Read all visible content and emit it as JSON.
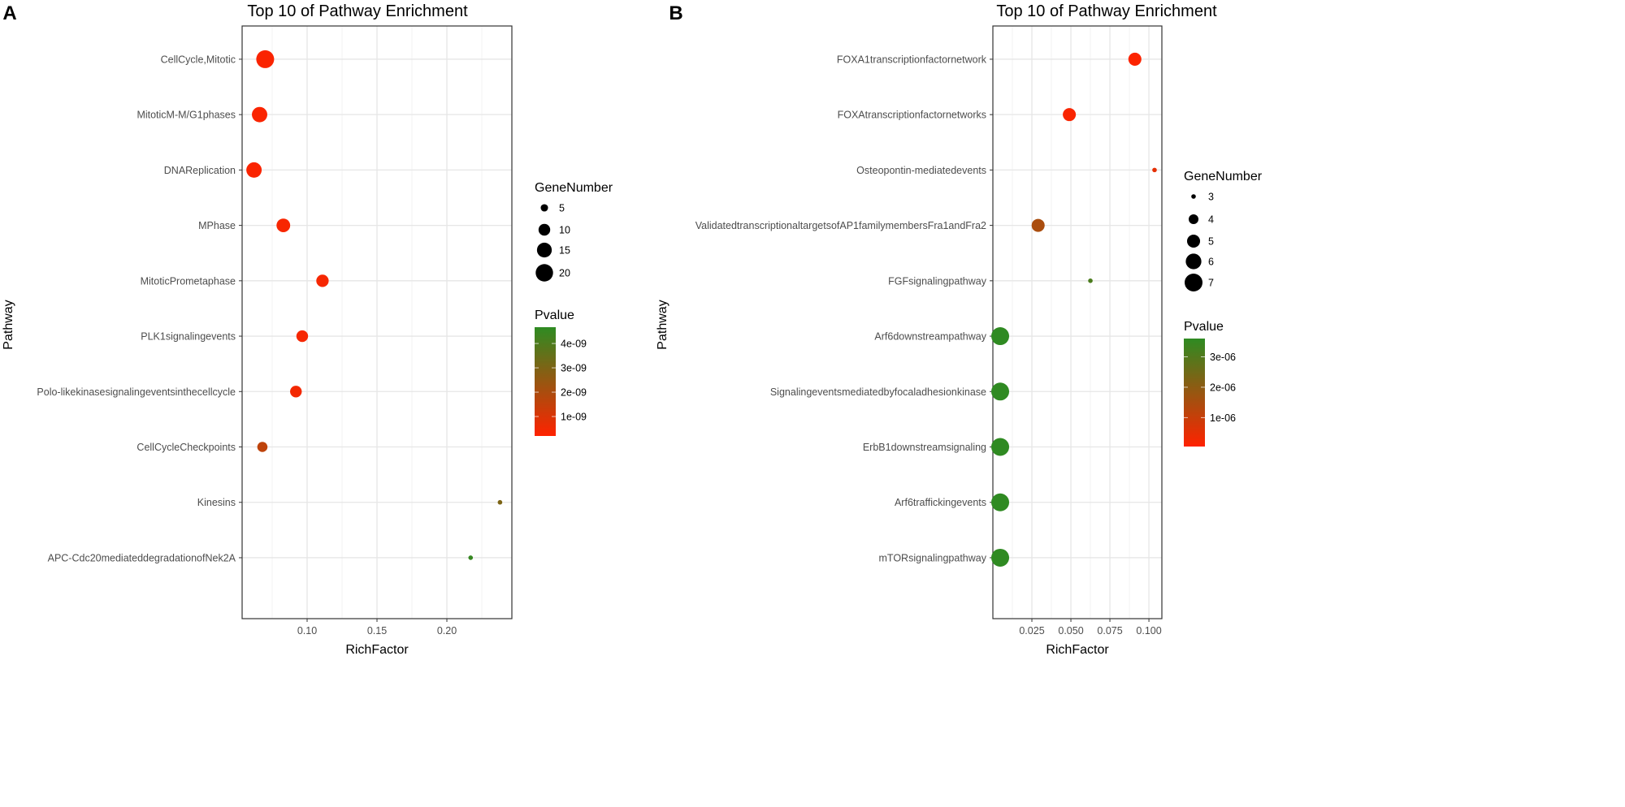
{
  "chart_data": [
    {
      "panel_label": "A",
      "type": "scatter",
      "title": "Top 10 of Pathway Enrichment",
      "xlabel": "RichFactor",
      "ylabel": "Pathway",
      "xlim": [
        0.0535,
        0.2465
      ],
      "xticks": [
        0.1,
        0.15,
        0.2
      ],
      "xtick_labels": [
        "0.10",
        "0.15",
        "0.20"
      ],
      "grid": true,
      "categories": [
        "CellCycle,Mitotic",
        "MitoticM-M/G1phases",
        "DNAReplication",
        "MPhase",
        "MitoticPrometaphase",
        "PLK1signalingevents",
        "Polo-likekinasesignalingeventsinthecellcycle",
        "CellCycleCheckpoints",
        "Kinesins",
        "APC-Cdc20mediateddegradationofNek2A"
      ],
      "rich_factor": [
        0.07,
        0.066,
        0.062,
        0.083,
        0.111,
        0.0965,
        0.092,
        0.068,
        0.238,
        0.217
      ],
      "gene_number": [
        21,
        16,
        16,
        13,
        11,
        10,
        10,
        8,
        3,
        3
      ],
      "pvalue": [
        3e-10,
        3e-10,
        3e-10,
        3.5e-10,
        4e-10,
        4e-10,
        4.5e-10,
        1.6e-09,
        3e-09,
        4.5e-09
      ],
      "size_legend": {
        "title": "GeneNumber",
        "values": [
          5,
          10,
          15,
          20
        ],
        "labels": [
          "5",
          "10",
          "15",
          "20"
        ],
        "range": [
          3,
          21
        ]
      },
      "color_legend": {
        "title": "Pvalue",
        "range": [
          2e-10,
          4.67e-09
        ],
        "ticks": [
          4e-09,
          3e-09,
          2e-09,
          1e-09
        ],
        "labels": [
          "4e-09",
          "3e-09",
          "2e-09",
          "1e-09"
        ]
      },
      "colors": {
        "low": "#ff2200",
        "high": "#2e8b22"
      }
    },
    {
      "panel_label": "B",
      "type": "scatter",
      "title": "Top 10 of Pathway Enrichment",
      "xlabel": "RichFactor",
      "ylabel": "Pathway",
      "xlim": [
        0.0,
        0.1083
      ],
      "xticks": [
        0.025,
        0.05,
        0.075,
        0.1
      ],
      "xtick_labels": [
        "0.025",
        "0.050",
        "0.075",
        "0.100"
      ],
      "grid": true,
      "categories": [
        "FOXA1transcriptionfactornetwork",
        "FOXAtranscriptionfactornetworks",
        "Osteopontin-mediatedevents",
        "ValidatedtranscriptionaltargetsofAP1familymembersFra1andFra2",
        "FGFsignalingpathway",
        "Arf6downstreampathway",
        "Signalingeventsmediatedbyfocaladhesionkinase",
        "ErbB1downstreamsignaling",
        "Arf6traffickingevents",
        "mTORsignalingpathway"
      ],
      "rich_factor": [
        0.091,
        0.049,
        0.1036,
        0.029,
        0.0625,
        0.0047,
        0.0047,
        0.0047,
        0.0047,
        0.0047
      ],
      "gene_number": [
        5,
        5,
        3,
        5,
        3,
        7,
        7,
        7,
        7,
        7
      ],
      "pvalue": [
        1e-07,
        1.5e-07,
        5e-07,
        1.5e-06,
        3.1e-06,
        3.58e-06,
        3.58e-06,
        3.58e-06,
        3.58e-06,
        3.58e-06
      ],
      "size_legend": {
        "title": "GeneNumber",
        "values": [
          3,
          4,
          5,
          6,
          7
        ],
        "labels": [
          "3",
          "4",
          "5",
          "6",
          "7"
        ],
        "range": [
          3,
          7
        ]
      },
      "color_legend": {
        "title": "Pvalue",
        "range": [
          5e-08,
          3.6e-06
        ],
        "ticks": [
          3e-06,
          2e-06,
          1e-06
        ],
        "labels": [
          "3e-06",
          "2e-06",
          "1e-06"
        ]
      },
      "colors": {
        "low": "#ff2200",
        "high": "#2e8b22"
      }
    }
  ]
}
